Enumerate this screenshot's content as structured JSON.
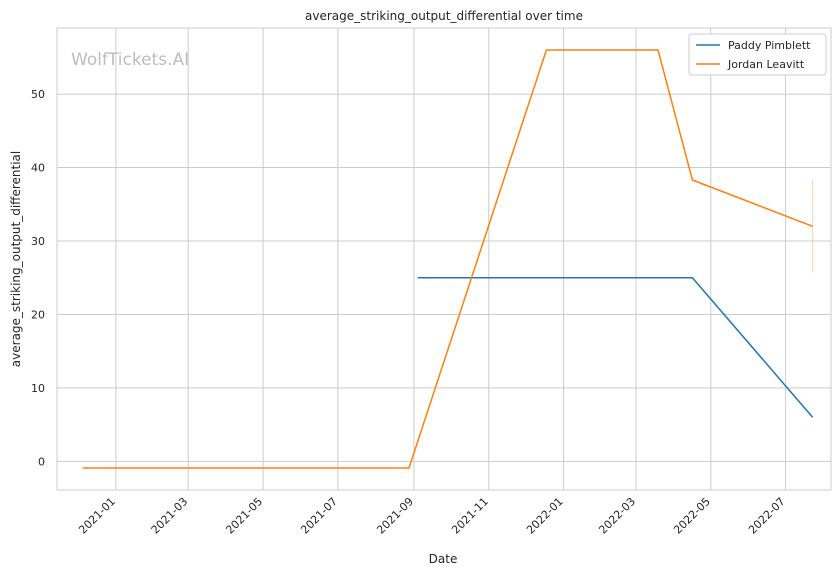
{
  "chart_data": {
    "type": "line",
    "title": "average_striking_output_differential over time",
    "xlabel": "Date",
    "ylabel": "average_striking_output_differential",
    "watermark": "WolfTickets.AI",
    "x_tick_labels": [
      "2021-01",
      "2021-03",
      "2021-05",
      "2021-07",
      "2021-09",
      "2021-11",
      "2022-01",
      "2022-03",
      "2022-05",
      "2022-07"
    ],
    "x_ticks": [
      "2021-01-01",
      "2021-03-01",
      "2021-05-01",
      "2021-07-01",
      "2021-09-01",
      "2021-11-01",
      "2022-01-01",
      "2022-03-01",
      "2022-05-01",
      "2022-07-01"
    ],
    "xlim": [
      "2020-11-14",
      "2022-08-07"
    ],
    "y_ticks": [
      0,
      10,
      20,
      30,
      40,
      50
    ],
    "ylim": [
      -3.9,
      59
    ],
    "grid": true,
    "legend_position": "top-right",
    "series": [
      {
        "name": "Paddy Pimblett",
        "color": "#1f77b4",
        "points": [
          {
            "x": "2021-09-04",
            "y": 25
          },
          {
            "x": "2022-04-16",
            "y": 25
          },
          {
            "x": "2022-07-23",
            "y": 6
          }
        ]
      },
      {
        "name": "Jordan Leavitt",
        "color": "#ff7f0e",
        "points": [
          {
            "x": "2020-12-05",
            "y": -0.9
          },
          {
            "x": "2021-08-28",
            "y": -0.9
          },
          {
            "x": "2021-12-18",
            "y": 56
          },
          {
            "x": "2022-03-19",
            "y": 56
          },
          {
            "x": "2022-04-16",
            "y": 38.3
          },
          {
            "x": "2022-07-23",
            "y": 32
          }
        ],
        "error_bar": {
          "x": "2022-07-23",
          "low": 25.7,
          "high": 38.3
        }
      }
    ]
  }
}
